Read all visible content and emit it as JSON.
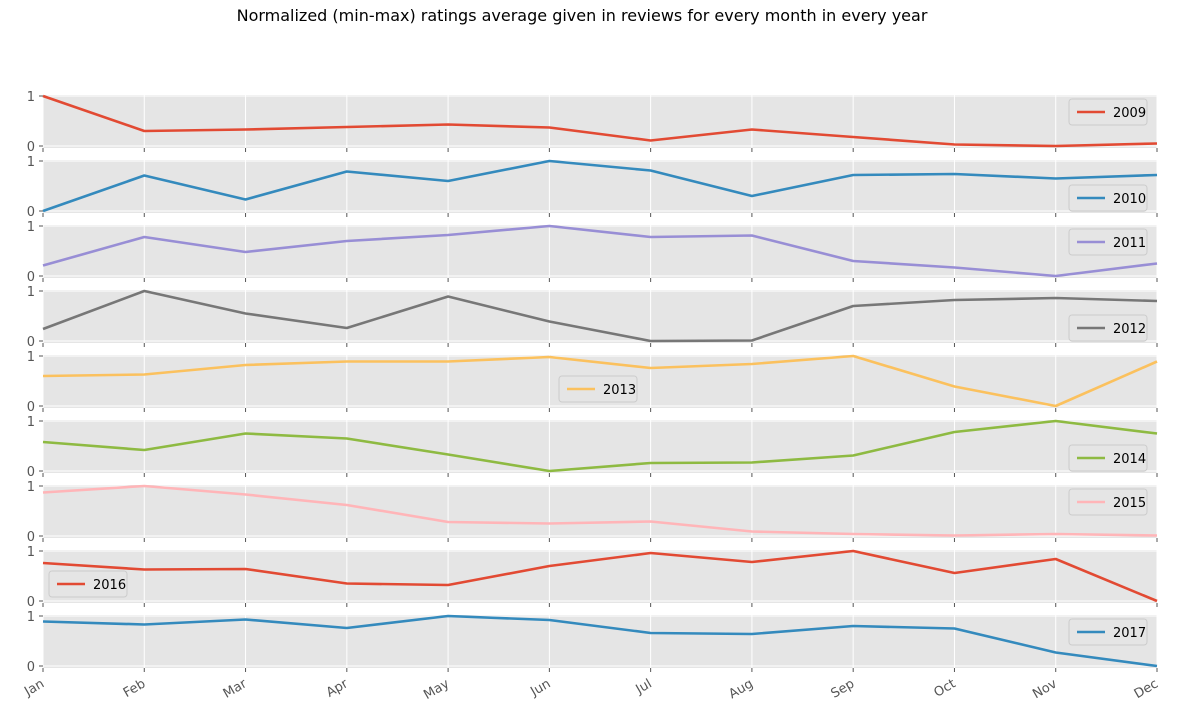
{
  "chart_data": {
    "type": "line",
    "title": "Normalized (min-max) ratings average given in reviews for every month in every year",
    "xlabel": "",
    "ylabel": "",
    "categories": [
      "Jan",
      "Feb",
      "Mar",
      "Apr",
      "May",
      "Jun",
      "Jul",
      "Aug",
      "Sep",
      "Oct",
      "Nov",
      "Dec"
    ],
    "y_ticks": [
      "0",
      "1"
    ],
    "ylim": [
      0,
      1
    ],
    "grid": true,
    "series": [
      {
        "name": "2009",
        "color": "#E24A33",
        "legend_position": "right",
        "values": [
          1.0,
          0.3,
          0.33,
          0.38,
          0.43,
          0.37,
          0.11,
          0.33,
          0.18,
          0.03,
          0.0,
          0.05
        ]
      },
      {
        "name": "2010",
        "color": "#348ABD",
        "legend_position": "lower right",
        "values": [
          0.0,
          0.71,
          0.23,
          0.79,
          0.6,
          1.0,
          0.81,
          0.3,
          0.72,
          0.74,
          0.65,
          0.72
        ]
      },
      {
        "name": "2011",
        "color": "#988ED5",
        "legend_position": "right",
        "values": [
          0.21,
          0.78,
          0.48,
          0.7,
          0.82,
          1.0,
          0.78,
          0.81,
          0.3,
          0.17,
          0.0,
          0.25
        ]
      },
      {
        "name": "2012",
        "color": "#777777",
        "legend_position": "lower right",
        "values": [
          0.24,
          1.0,
          0.55,
          0.26,
          0.89,
          0.39,
          0.0,
          0.01,
          0.7,
          0.82,
          0.86,
          0.8
        ]
      },
      {
        "name": "2013",
        "color": "#FBC15E",
        "legend_position": "lower center",
        "values": [
          0.6,
          0.63,
          0.82,
          0.89,
          0.89,
          0.98,
          0.76,
          0.84,
          1.0,
          0.39,
          0.0,
          0.89
        ]
      },
      {
        "name": "2014",
        "color": "#8EBA42",
        "legend_position": "lower right",
        "values": [
          0.58,
          0.42,
          0.75,
          0.65,
          0.33,
          0.0,
          0.16,
          0.17,
          0.31,
          0.78,
          1.0,
          0.75
        ]
      },
      {
        "name": "2015",
        "color": "#FFB5B8",
        "legend_position": "right",
        "values": [
          0.87,
          1.0,
          0.83,
          0.62,
          0.28,
          0.25,
          0.29,
          0.09,
          0.04,
          0.01,
          0.04,
          0.01
        ]
      },
      {
        "name": "2016",
        "color": "#E24A33",
        "legend_position": "lower left",
        "values": [
          0.76,
          0.63,
          0.64,
          0.35,
          0.32,
          0.7,
          0.96,
          0.78,
          1.0,
          0.56,
          0.84,
          0.0
        ]
      },
      {
        "name": "2017",
        "color": "#348ABD",
        "legend_position": "right",
        "values": [
          0.89,
          0.83,
          0.93,
          0.76,
          1.0,
          0.92,
          0.66,
          0.64,
          0.8,
          0.75,
          0.27,
          0.0
        ]
      }
    ]
  }
}
